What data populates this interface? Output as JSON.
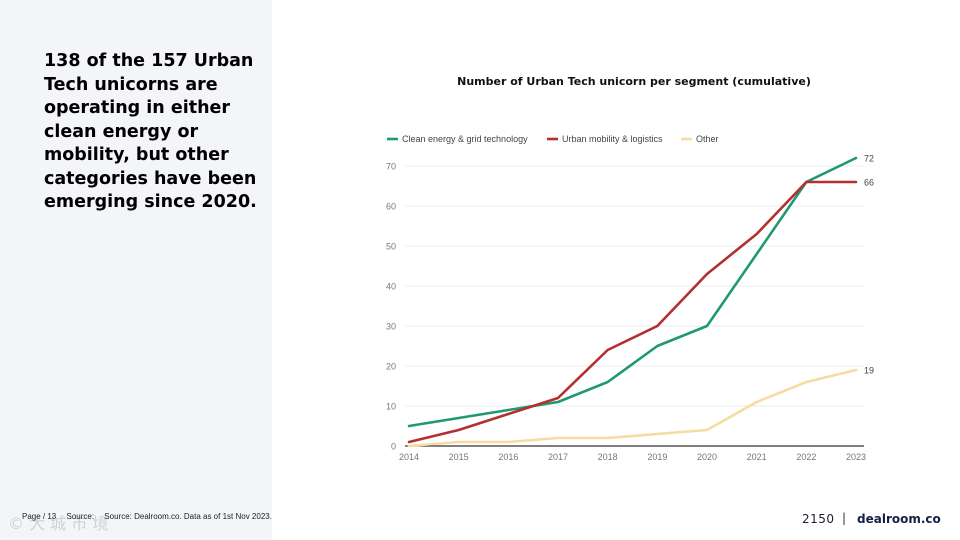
{
  "headline": {
    "lines": [
      "138 of the 157 Urban",
      "Tech unicorns are",
      "operating in either",
      "clean energy or",
      "mobility, but other",
      "categories have been",
      "emerging since 2020."
    ]
  },
  "footer": {
    "page_label": "Page / 13",
    "source_label": "Source:",
    "source_text": "Source: Dealroom.co. Data as of 1st Nov 2023."
  },
  "logos": {
    "brand1": "2150",
    "separator": "|",
    "brand2": "dealroom.co"
  },
  "watermark": "© 大 城 市 境",
  "colors": {
    "clean_energy": "#1f9a70",
    "mobility": "#b3302e",
    "other": "#f5dca0",
    "grid": "#e6e6e6",
    "axis_text": "#777777"
  },
  "chart_data": {
    "type": "line",
    "title": "Number of Urban Tech unicorn per segment (cumulative)",
    "xlabel": "",
    "ylabel": "",
    "x": [
      "2014",
      "2015",
      "2016",
      "2017",
      "2018",
      "2019",
      "2020",
      "2021",
      "2022",
      "2023"
    ],
    "ylim": [
      0,
      70
    ],
    "yticks": [
      0,
      10,
      20,
      30,
      40,
      50,
      60,
      70
    ],
    "grid": true,
    "legend_position": "top-left",
    "series": [
      {
        "name": "Clean energy & grid technology",
        "color": "#1f9a70",
        "values": [
          5,
          7,
          9,
          11,
          16,
          25,
          30,
          48,
          66,
          72
        ],
        "end_label": "72"
      },
      {
        "name": "Urban mobility & logistics",
        "color": "#b3302e",
        "values": [
          1,
          4,
          8,
          12,
          24,
          30,
          43,
          53,
          66,
          66
        ],
        "end_label": "66"
      },
      {
        "name": "Other",
        "color": "#f5dca0",
        "values": [
          0,
          1,
          1,
          2,
          2,
          3,
          4,
          11,
          16,
          19
        ],
        "end_label": "19"
      }
    ]
  }
}
